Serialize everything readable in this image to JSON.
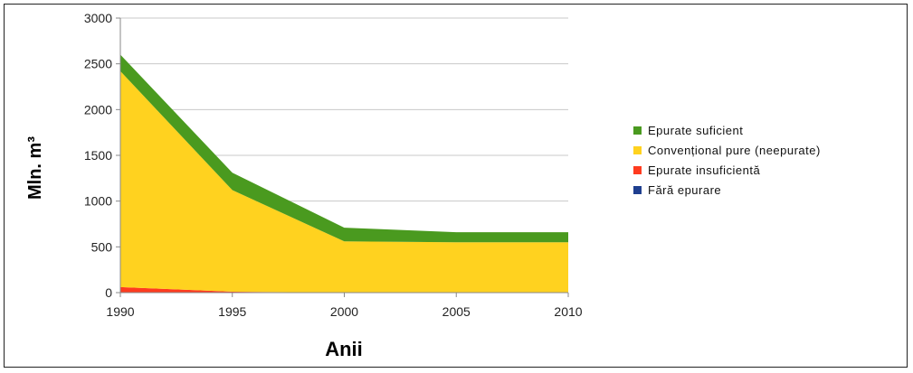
{
  "chart_data": {
    "type": "area",
    "stacked": true,
    "x": [
      1990,
      1995,
      2000,
      2005,
      2010
    ],
    "xlabel": "Anii",
    "ylabel": "Mln. m³",
    "ylim": [
      0,
      3000
    ],
    "yticks": [
      "0",
      "500",
      "1000",
      "1500",
      "2000",
      "2500",
      "3000"
    ],
    "xticks": [
      "1990",
      "1995",
      "2000",
      "2005",
      "2010"
    ],
    "grid": "horizontal",
    "legend_position": "right",
    "series": [
      {
        "name": "Fără epurare",
        "color": "#1f3f8f",
        "values": [
          0,
          0,
          0,
          0,
          0
        ]
      },
      {
        "name": "Epurate insuficientă",
        "color": "#ff3b1f",
        "values": [
          60,
          10,
          0,
          0,
          0
        ]
      },
      {
        "name": "Convențional pure (neepurate)",
        "color": "#ffd21f",
        "values": [
          2360,
          1110,
          560,
          550,
          550
        ]
      },
      {
        "name": "Epurate suficient",
        "color": "#4a9a1f",
        "values": [
          180,
          190,
          150,
          110,
          110
        ]
      }
    ],
    "legend_order": [
      "Epurate suficient",
      "Convențional pure (neepurate)",
      "Epurate insuficientă",
      "Fără epurare"
    ]
  }
}
